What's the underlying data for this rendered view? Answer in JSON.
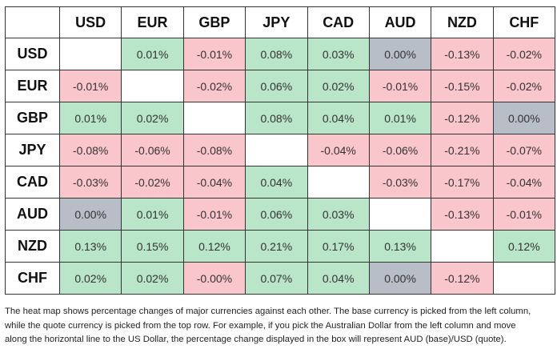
{
  "table": {
    "columns": [
      "USD",
      "EUR",
      "GBP",
      "JPY",
      "CAD",
      "AUD",
      "NZD",
      "CHF"
    ],
    "rows": [
      {
        "label": "USD",
        "cells": [
          null,
          "0.01%",
          "-0.01%",
          "0.08%",
          "0.03%",
          "0.00%",
          "-0.13%",
          "-0.02%"
        ]
      },
      {
        "label": "EUR",
        "cells": [
          "-0.01%",
          null,
          "-0.02%",
          "0.06%",
          "0.02%",
          "-0.01%",
          "-0.15%",
          "-0.02%"
        ]
      },
      {
        "label": "GBP",
        "cells": [
          "0.01%",
          "0.02%",
          null,
          "0.08%",
          "0.04%",
          "0.01%",
          "-0.12%",
          "0.00%"
        ]
      },
      {
        "label": "JPY",
        "cells": [
          "-0.08%",
          "-0.06%",
          "-0.08%",
          null,
          "-0.04%",
          "-0.06%",
          "-0.21%",
          "-0.07%"
        ]
      },
      {
        "label": "CAD",
        "cells": [
          "-0.03%",
          "-0.02%",
          "-0.04%",
          "0.04%",
          null,
          "-0.03%",
          "-0.17%",
          "-0.04%"
        ]
      },
      {
        "label": "AUD",
        "cells": [
          "0.00%",
          "0.01%",
          "-0.01%",
          "0.06%",
          "0.03%",
          null,
          "-0.13%",
          "-0.01%"
        ]
      },
      {
        "label": "NZD",
        "cells": [
          "0.13%",
          "0.15%",
          "0.12%",
          "0.21%",
          "0.17%",
          "0.13%",
          null,
          "0.12%"
        ]
      },
      {
        "label": "CHF",
        "cells": [
          "0.02%",
          "0.02%",
          "-0.00%",
          "0.07%",
          "0.04%",
          "0.00%",
          "-0.12%",
          null
        ]
      }
    ]
  },
  "caption": {
    "lines": [
      "The heat map shows percentage changes of major currencies against each other. The base currency is picked from the left column,",
      "while the quote currency is picked from the top row. For example, if you pick the Australian Dollar from the left column and move",
      "along the horizontal line to the US Dollar, the percentage change displayed in the box will represent AUD (base)/USD (quote)."
    ]
  }
}
